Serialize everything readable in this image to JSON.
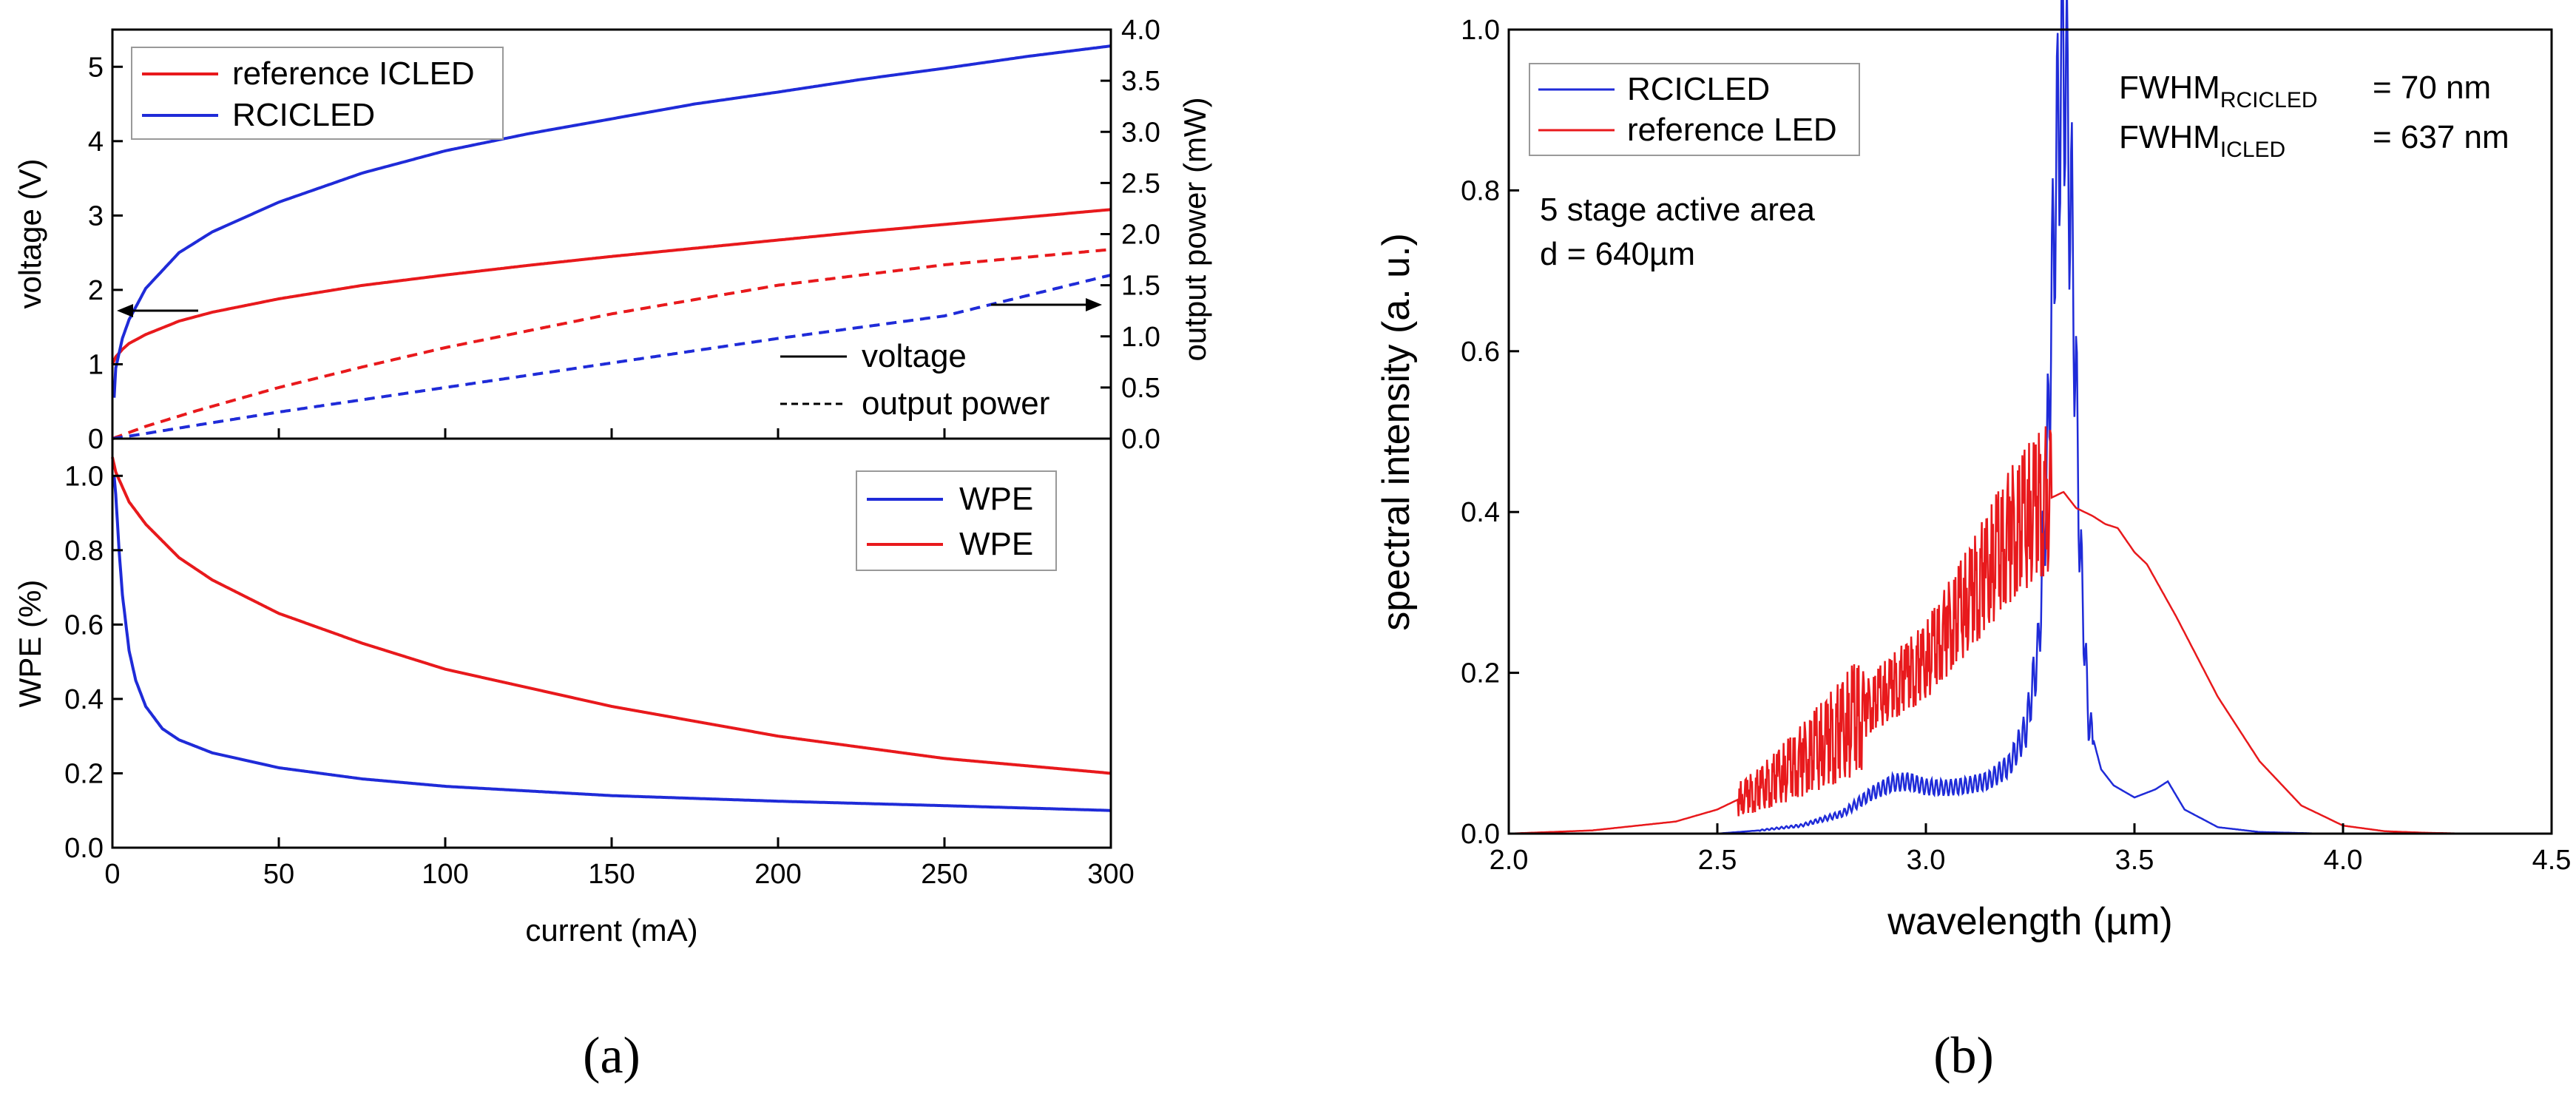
{
  "colors": {
    "red": "#e8191c",
    "blue": "#1f2bd8",
    "black": "#000000"
  },
  "panel_labels": {
    "a": "(a)",
    "b": "(b)"
  },
  "chart_data": [
    {
      "id": "a-top",
      "type": "line",
      "xlabel": "current (mA)",
      "ylabel": "voltage (V)",
      "y2label": "output power (mW)",
      "xlim": [
        0,
        300
      ],
      "ylim": [
        0,
        5.5
      ],
      "y2lim": [
        0,
        4.0
      ],
      "xticks": [
        0,
        50,
        100,
        150,
        200,
        250,
        300
      ],
      "yticks": [
        "0",
        "1",
        "2",
        "3",
        "4",
        "5"
      ],
      "y2ticks": [
        "0.0",
        "0.5",
        "1.0",
        "1.5",
        "2.0",
        "2.5",
        "3.0",
        "3.5",
        "4.0"
      ],
      "legend_series": [
        "reference ICLED",
        "RCICLED"
      ],
      "legend_style": [
        "voltage",
        "output power"
      ],
      "series": [
        {
          "name": "reference ICLED",
          "quantity": "voltage",
          "axis": "left",
          "color": "red",
          "style": "solid",
          "x": [
            0,
            1,
            3,
            5,
            10,
            20,
            30,
            50,
            75,
            100,
            125,
            150,
            175,
            200,
            225,
            250,
            275,
            300
          ],
          "y": [
            1.0,
            1.1,
            1.2,
            1.28,
            1.4,
            1.58,
            1.7,
            1.88,
            2.06,
            2.2,
            2.33,
            2.45,
            2.56,
            2.67,
            2.78,
            2.88,
            2.98,
            3.08
          ]
        },
        {
          "name": "RCICLED",
          "quantity": "voltage",
          "axis": "left",
          "color": "blue",
          "style": "solid",
          "x": [
            0.5,
            1,
            3,
            5,
            10,
            20,
            30,
            50,
            75,
            100,
            125,
            150,
            175,
            200,
            225,
            250,
            275,
            300
          ],
          "y": [
            0.55,
            0.95,
            1.35,
            1.6,
            2.02,
            2.5,
            2.78,
            3.18,
            3.57,
            3.87,
            4.1,
            4.3,
            4.5,
            4.66,
            4.83,
            4.98,
            5.14,
            5.28
          ]
        },
        {
          "name": "reference ICLED",
          "quantity": "output power",
          "axis": "right",
          "color": "red",
          "style": "dashed",
          "x": [
            0,
            10,
            25,
            50,
            75,
            100,
            150,
            200,
            250,
            300
          ],
          "y": [
            0.0,
            0.12,
            0.27,
            0.5,
            0.7,
            0.89,
            1.22,
            1.5,
            1.7,
            1.85
          ]
        },
        {
          "name": "RCICLED",
          "quantity": "output power",
          "axis": "right",
          "color": "blue",
          "style": "dashed",
          "x": [
            0,
            10,
            25,
            50,
            75,
            100,
            150,
            200,
            250,
            300
          ],
          "y": [
            0.0,
            0.05,
            0.13,
            0.26,
            0.38,
            0.5,
            0.74,
            0.98,
            1.2,
            1.6
          ]
        }
      ],
      "annotations": [
        {
          "type": "arrow",
          "points_to": "left axis",
          "at_y": 1.75,
          "from_x": 26,
          "to_x": 1
        },
        {
          "type": "arrow",
          "points_to": "right axis",
          "at_y2": 1.3,
          "from_x": 264,
          "to_x": 299
        }
      ]
    },
    {
      "id": "a-bottom",
      "type": "line",
      "xlabel": "current (mA)",
      "ylabel": "WPE (%)",
      "xlim": [
        0,
        300
      ],
      "ylim": [
        0,
        1.1
      ],
      "xticks": [
        "0",
        "50",
        "100",
        "150",
        "200",
        "250",
        "300"
      ],
      "yticks": [
        "0.0",
        "0.2",
        "0.4",
        "0.6",
        "0.8",
        "1.0"
      ],
      "legend": [
        "WPE",
        "WPE"
      ],
      "series": [
        {
          "name": "WPE",
          "color": "blue",
          "x": [
            0.5,
            1,
            2,
            3,
            5,
            7,
            10,
            15,
            20,
            30,
            50,
            75,
            100,
            150,
            200,
            250,
            300
          ],
          "y": [
            1.0,
            0.95,
            0.8,
            0.68,
            0.53,
            0.45,
            0.38,
            0.32,
            0.29,
            0.255,
            0.215,
            0.185,
            0.165,
            0.14,
            0.125,
            0.113,
            0.1
          ]
        },
        {
          "name": "WPE",
          "color": "red",
          "x": [
            0,
            1,
            3,
            5,
            10,
            20,
            30,
            50,
            75,
            100,
            125,
            150,
            175,
            200,
            225,
            250,
            275,
            300
          ],
          "y": [
            1.05,
            1.01,
            0.97,
            0.93,
            0.87,
            0.78,
            0.72,
            0.63,
            0.55,
            0.48,
            0.43,
            0.38,
            0.34,
            0.3,
            0.27,
            0.24,
            0.22,
            0.2
          ]
        }
      ]
    },
    {
      "id": "b",
      "type": "line",
      "xlabel": "wavelength (µm)",
      "ylabel": "spectral intensity (a. u.)",
      "xlim": [
        2.0,
        4.5
      ],
      "ylim": [
        0.0,
        1.0
      ],
      "xticks": [
        "2.0",
        "2.5",
        "3.0",
        "3.5",
        "4.0",
        "4.5"
      ],
      "yticks": [
        "0.0",
        "0.2",
        "0.4",
        "0.6",
        "0.8",
        "1.0"
      ],
      "legend": [
        "RCICLED",
        "reference LED"
      ],
      "annotations": {
        "fwhm_rc_base": "FWHM",
        "fwhm_rc_sub": "RCICLED",
        "fwhm_rc_val": "= 70 nm",
        "fwhm_ic_base": "FWHM",
        "fwhm_ic_sub": "ICLED",
        "fwhm_ic_val": "= 637 nm",
        "area": "5 stage active area",
        "diameter": "d = 640µm"
      },
      "series": [
        {
          "name": "RCICLED",
          "color": "blue",
          "x": [
            2.34,
            2.5,
            2.6,
            2.7,
            2.8,
            2.87,
            2.92,
            2.96,
            3.0,
            3.05,
            3.1,
            3.15,
            3.2,
            3.24,
            3.27,
            3.29,
            3.31,
            3.33,
            3.35,
            3.37,
            3.39,
            3.42,
            3.45,
            3.5,
            3.55,
            3.58,
            3.62,
            3.7,
            3.8,
            3.95
          ],
          "y": [
            0.0,
            0.0,
            0.004,
            0.01,
            0.025,
            0.05,
            0.063,
            0.065,
            0.058,
            0.057,
            0.06,
            0.066,
            0.085,
            0.13,
            0.23,
            0.45,
            0.8,
            1.0,
            0.75,
            0.35,
            0.14,
            0.08,
            0.06,
            0.045,
            0.055,
            0.065,
            0.03,
            0.008,
            0.002,
            0.0
          ]
        },
        {
          "name": "reference LED",
          "color": "red",
          "x": [
            2.0,
            2.2,
            2.4,
            2.5,
            2.6,
            2.7,
            2.8,
            2.9,
            3.0,
            3.1,
            3.2,
            3.27,
            3.33,
            3.36,
            3.4,
            3.43,
            3.46,
            3.5,
            3.53,
            3.6,
            3.7,
            3.8,
            3.9,
            4.0,
            4.1,
            4.2,
            4.3,
            4.5
          ],
          "y": [
            0.0,
            0.004,
            0.015,
            0.03,
            0.055,
            0.09,
            0.13,
            0.175,
            0.215,
            0.29,
            0.37,
            0.41,
            0.425,
            0.405,
            0.395,
            0.385,
            0.38,
            0.35,
            0.335,
            0.27,
            0.17,
            0.09,
            0.035,
            0.01,
            0.003,
            0.001,
            0.0,
            0.0
          ]
        }
      ]
    }
  ]
}
